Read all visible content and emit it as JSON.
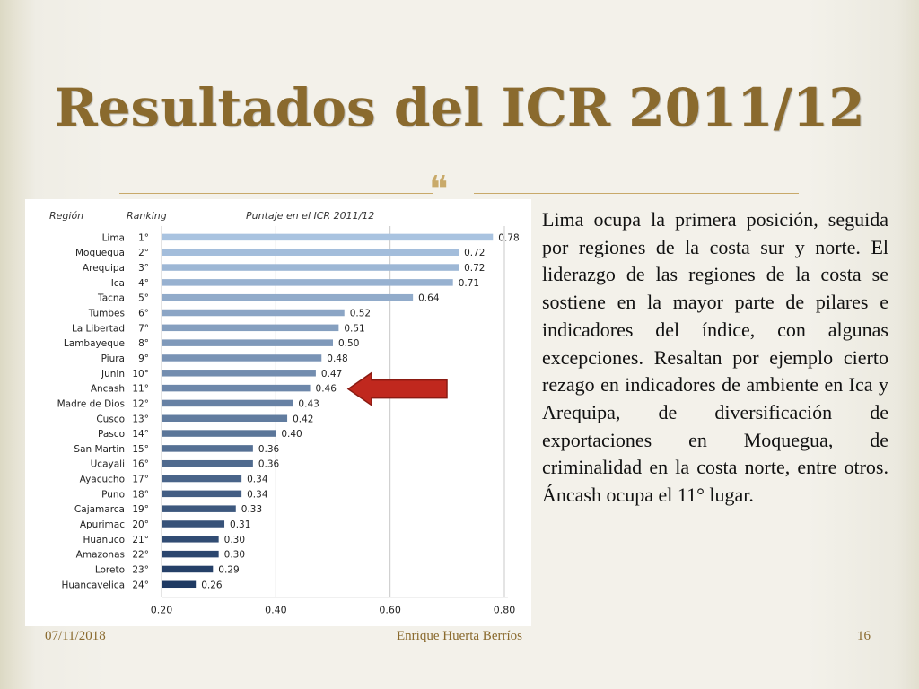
{
  "slide": {
    "title": "Resultados del ICR 2011/12",
    "ornament": "❝",
    "body": "Lima ocupa la primera posición, seguida por regiones de la costa sur y norte. El liderazgo de las regiones de la costa se sostiene en la mayor parte de pilares e indicadores del índice, con algunas excepciones. Resaltan por ejemplo cierto rezago en indicadores de ambiente en Ica y Arequipa, de diversificación de exportaciones en Moquegua, de criminalidad en la costa norte, entre otros.  Áncash ocupa el 11° lugar.",
    "footer": {
      "date": "07/11/2018",
      "author": "Enrique Huerta Berríos",
      "page": "16"
    }
  },
  "chart_data": {
    "type": "bar",
    "orientation": "horizontal",
    "column_headers": {
      "region": "Región",
      "ranking": "Ranking",
      "score": "Puntaje en el ICR 2011/12"
    },
    "categories": [
      "Lima",
      "Moquegua",
      "Arequipa",
      "Ica",
      "Tacna",
      "Tumbes",
      "La Libertad",
      "Lambayeque",
      "Piura",
      "Junin",
      "Ancash",
      "Madre de Dios",
      "Cusco",
      "Pasco",
      "San Martin",
      "Ucayali",
      "Ayacucho",
      "Puno",
      "Cajamarca",
      "Apurimac",
      "Huanuco",
      "Amazonas",
      "Loreto",
      "Huancavelica"
    ],
    "rankings": [
      "1°",
      "2°",
      "3°",
      "4°",
      "5°",
      "6°",
      "7°",
      "8°",
      "9°",
      "10°",
      "11°",
      "12°",
      "13°",
      "14°",
      "15°",
      "16°",
      "17°",
      "18°",
      "19°",
      "20°",
      "21°",
      "22°",
      "23°",
      "24°"
    ],
    "values": [
      0.78,
      0.72,
      0.72,
      0.71,
      0.64,
      0.52,
      0.51,
      0.5,
      0.48,
      0.47,
      0.46,
      0.43,
      0.42,
      0.4,
      0.36,
      0.36,
      0.34,
      0.34,
      0.33,
      0.31,
      0.3,
      0.3,
      0.29,
      0.26
    ],
    "value_labels": [
      "0.78",
      "0.72",
      "0.72",
      "0.71",
      "0.64",
      "0.52",
      "0.51",
      "0.50",
      "0.48",
      "0.47",
      "0.46",
      "0.43",
      "0.42",
      "0.40",
      "0.36",
      "0.36",
      "0.34",
      "0.34",
      "0.33",
      "0.31",
      "0.30",
      "0.30",
      "0.29",
      "0.26"
    ],
    "xlim": [
      0.2,
      0.8
    ],
    "xticks": [
      0.2,
      0.4,
      0.6,
      0.8
    ],
    "xtick_labels": [
      "0.20",
      "0.40",
      "0.60",
      "0.80"
    ],
    "highlight": "Ancash",
    "colors": {
      "bar_light": "#a9c3e0",
      "bar_dark": "#1f3a63",
      "arrow": "#c0281e",
      "grid": "#c8c8c8"
    }
  }
}
